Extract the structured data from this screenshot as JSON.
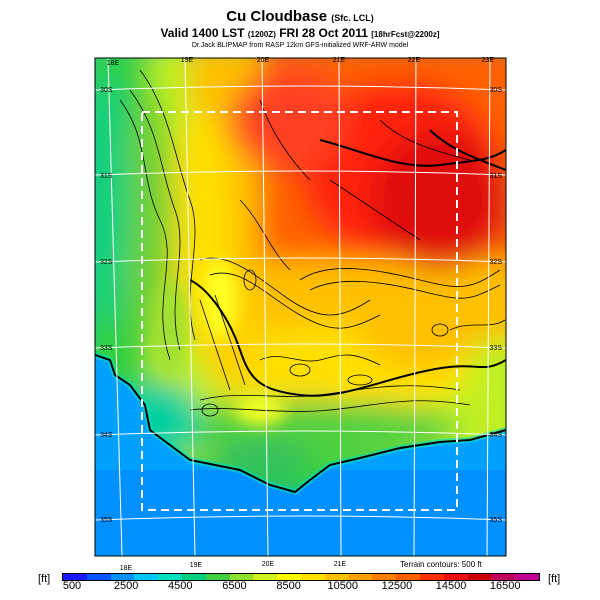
{
  "header": {
    "title": "Cu Cloudbase",
    "title_suffix": "(Sfc. LCL)",
    "valid_main": "Valid 1400 LST",
    "valid_time": "(1200Z)",
    "valid_date": "FRI 28 Oct 2011",
    "valid_fcst": "[18hrFcst@2200z]",
    "source": "Dr.Jack BLIPMAP from RASP 12km GFS-initialized WRF-ARW model"
  },
  "map": {
    "lon_top": [
      "18E",
      "19E",
      "20E",
      "21E",
      "22E",
      "23E"
    ],
    "lon_bottom": [
      "18E",
      "19E",
      "20E",
      "21E"
    ],
    "lat_left": [
      "30S",
      "31S",
      "32S",
      "33S",
      "34S",
      "35S"
    ],
    "lat_right": [
      "30S",
      "31S",
      "32S",
      "33S",
      "34S",
      "35S"
    ],
    "terrain_note": "Terrain contours: 500 ft"
  },
  "colorbar": {
    "unit_left": "[ft]",
    "unit_right": "[ft]",
    "labels": [
      "500",
      "2500",
      "4500",
      "6500",
      "8500",
      "10500",
      "12500",
      "14500",
      "16500"
    ],
    "colors": [
      "#1a1aff",
      "#0055ff",
      "#0090ff",
      "#00c8ff",
      "#00e0c0",
      "#00d080",
      "#40d040",
      "#90e030",
      "#d0f020",
      "#ffff00",
      "#ffe000",
      "#ffc000",
      "#ffa000",
      "#ff8000",
      "#ff6000",
      "#ff3000",
      "#ee1010",
      "#cc0000",
      "#c00060",
      "#c00090"
    ]
  }
}
